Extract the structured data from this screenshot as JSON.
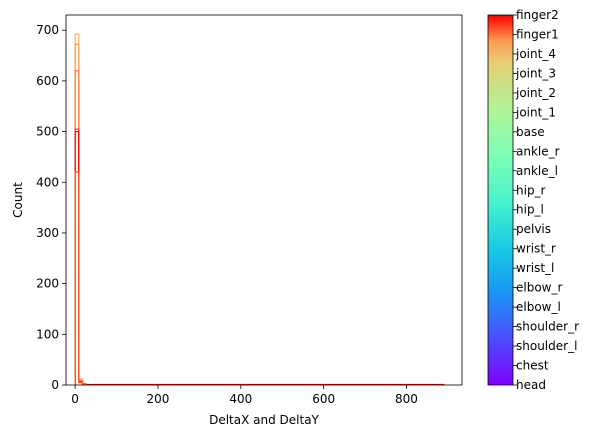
{
  "chart_data": {
    "type": "histogram",
    "xlabel": "DeltaX and DeltaY",
    "ylabel": "Count",
    "xlim": [
      -22,
      934
    ],
    "ylim": [
      0,
      730
    ],
    "xticks": [
      0,
      200,
      400,
      600,
      800
    ],
    "yticks": [
      0,
      100,
      200,
      300,
      400,
      500,
      600,
      700
    ],
    "grid": false,
    "colormap": "rainbow",
    "colorbar": {
      "position": "right",
      "labels": [
        "head",
        "chest",
        "shoulder_l",
        "shoulder_r",
        "elbow_l",
        "elbow_r",
        "wrist_l",
        "wrist_r",
        "pelvis",
        "hip_l",
        "hip_r",
        "ankle_l",
        "ankle_r",
        "base",
        "joint_1",
        "joint_2",
        "joint_3",
        "joint_4",
        "finger1",
        "finger2"
      ]
    },
    "series": [
      {
        "name": "joint_1",
        "color": "#ffb360",
        "bins": [
          [
            0,
            8.9,
            692
          ],
          [
            8.9,
            17.8,
            12
          ],
          [
            17.8,
            26.7,
            3
          ]
        ]
      },
      {
        "name": "joint_2",
        "color": "#ff9a50",
        "bins": [
          [
            0,
            8.9,
            672
          ],
          [
            8.9,
            17.8,
            10
          ],
          [
            17.8,
            26.7,
            2
          ]
        ]
      },
      {
        "name": "joint_3",
        "color": "#ff7d40",
        "bins": [
          [
            0,
            8.9,
            620
          ],
          [
            8.9,
            17.8,
            8
          ],
          [
            17.8,
            26.7,
            2
          ]
        ]
      },
      {
        "name": "finger1",
        "color": "#ff3a18",
        "bins": [
          [
            0,
            8.9,
            505
          ],
          [
            8.9,
            17.8,
            6
          ],
          [
            17.8,
            26.7,
            1
          ]
        ]
      },
      {
        "name": "finger2",
        "color": "#ff0000",
        "bins": [
          [
            0,
            8.9,
            500
          ],
          [
            8.9,
            17.8,
            6
          ],
          [
            17.8,
            26.7,
            1
          ],
          [
            26.7,
            890,
            1
          ]
        ]
      },
      {
        "name": "joint_4",
        "color": "#ff5a2a",
        "bins": [
          [
            0,
            8.9,
            420
          ],
          [
            8.9,
            17.8,
            5
          ],
          [
            17.8,
            26.7,
            1
          ]
        ]
      }
    ]
  }
}
